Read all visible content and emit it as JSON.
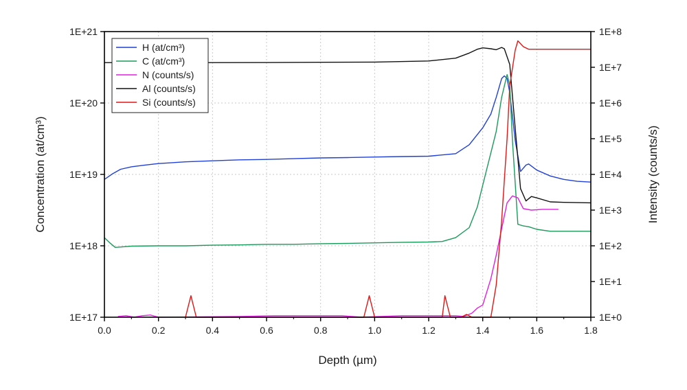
{
  "chart_data": {
    "type": "line",
    "xlabel": "Depth (µm)",
    "ylabel_left": "Concentration (at/cm³)",
    "ylabel_right": "Intensity (counts/s)",
    "xlim": [
      0,
      1.8
    ],
    "x_ticks": [
      0,
      0.2,
      0.4,
      0.6,
      0.8,
      1.0,
      1.2,
      1.4,
      1.6,
      1.8
    ],
    "x_tick_labels": [
      "0.0",
      "0.2",
      "0.4",
      "0.6",
      "0.8",
      "1.0",
      "1.2",
      "1.4",
      "1.6",
      "1.8"
    ],
    "y_left_scale": "log",
    "y_left_lim": [
      1e+17,
      1e+21
    ],
    "y_left_tick_labels": [
      "1E+17",
      "1E+18",
      "1E+19",
      "1E+20",
      "1E+21"
    ],
    "y_right_scale": "log",
    "y_right_lim": [
      1,
      100000000.0
    ],
    "y_right_tick_labels": [
      "1E+0",
      "1E+1",
      "1E+2",
      "1E+3",
      "1E+4",
      "1E+5",
      "1E+6",
      "1E+7",
      "1E+8"
    ],
    "grid": true,
    "legend_position": "top-left",
    "series": [
      {
        "name": "H (at/cm³)",
        "axis": "left",
        "color": "#1f3fd6",
        "x": [
          0.0,
          0.03,
          0.06,
          0.1,
          0.15,
          0.2,
          0.3,
          0.4,
          0.5,
          0.6,
          0.7,
          0.8,
          0.9,
          1.0,
          1.1,
          1.2,
          1.3,
          1.35,
          1.4,
          1.43,
          1.45,
          1.47,
          1.48,
          1.49,
          1.5,
          1.52,
          1.54,
          1.56,
          1.57,
          1.6,
          1.65,
          1.7,
          1.75,
          1.8
        ],
        "values": [
          8.5e+18,
          1.02e+19,
          1.18e+19,
          1.28e+19,
          1.35e+19,
          1.42e+19,
          1.5e+19,
          1.55e+19,
          1.6e+19,
          1.62e+19,
          1.66e+19,
          1.7e+19,
          1.72e+19,
          1.75e+19,
          1.78e+19,
          1.8e+19,
          1.95e+19,
          2.6e+19,
          4.5e+19,
          7e+19,
          1.2e+20,
          2.2e+20,
          2.4e+20,
          2.2e+20,
          1.4e+20,
          3e+19,
          1.1e+19,
          1.35e+19,
          1.4e+19,
          1.15e+19,
          9.5e+18,
          8.5e+18,
          8e+18,
          7.8e+18
        ]
      },
      {
        "name": "C (at/cm³)",
        "axis": "left",
        "color": "#1a9a5a",
        "x": [
          0.0,
          0.02,
          0.04,
          0.07,
          0.1,
          0.2,
          0.3,
          0.4,
          0.5,
          0.6,
          0.7,
          0.8,
          0.9,
          1.0,
          1.1,
          1.2,
          1.25,
          1.3,
          1.35,
          1.38,
          1.41,
          1.43,
          1.45,
          1.47,
          1.49,
          1.5,
          1.51,
          1.53,
          1.55,
          1.57,
          1.6,
          1.65,
          1.7,
          1.8
        ],
        "values": [
          1.3e+18,
          1.1e+18,
          9.5e+17,
          9.7e+17,
          9.9e+17,
          1e+18,
          1e+18,
          1.02e+18,
          1.03e+18,
          1.05e+18,
          1.05e+18,
          1.07e+18,
          1.08e+18,
          1.1e+18,
          1.12e+18,
          1.13e+18,
          1.15e+18,
          1.3e+18,
          1.8e+18,
          3.5e+18,
          1e+19,
          2e+19,
          4e+19,
          1.2e+20,
          2.5e+20,
          1.8e+20,
          3e+19,
          2e+18,
          1.9e+18,
          1.85e+18,
          1.7e+18,
          1.6e+18,
          1.6e+18,
          1.6e+18
        ]
      },
      {
        "name": "N (counts/s)",
        "axis": "right",
        "color": "#e21de2",
        "x": [
          0.05,
          0.08,
          0.11,
          0.14,
          0.17,
          0.2,
          0.5,
          0.63,
          0.88,
          0.95,
          1.1,
          1.3,
          1.33,
          1.36,
          1.38,
          1.4,
          1.43,
          1.45,
          1.47,
          1.49,
          1.51,
          1.53,
          1.55,
          1.58,
          1.62,
          1.68
        ],
        "values": [
          1.05,
          1.1,
          1.0,
          1.1,
          1.15,
          1.0,
          1.05,
          1.1,
          1.1,
          1.0,
          1.1,
          1.1,
          1.05,
          1.3,
          1.8,
          2.2,
          12,
          55,
          300,
          1600,
          2500,
          2200,
          1100,
          1000,
          1050,
          1050
        ]
      },
      {
        "name": "Al (counts/s)",
        "axis": "right",
        "color": "#111111",
        "x": [
          0.0,
          0.2,
          0.4,
          0.6,
          0.8,
          1.0,
          1.2,
          1.3,
          1.35,
          1.38,
          1.4,
          1.43,
          1.45,
          1.47,
          1.48,
          1.5,
          1.52,
          1.54,
          1.56,
          1.58,
          1.6,
          1.65,
          1.7,
          1.8
        ],
        "values": [
          13500000,
          13500000,
          13500000,
          13600000,
          13800000,
          14000000,
          15000000,
          18000000,
          25000000,
          32000000,
          35000000,
          33000000,
          31000000,
          36000000,
          33000000,
          12000000,
          200000,
          4000,
          1800,
          2400,
          2200,
          1700,
          1650,
          1600
        ]
      },
      {
        "name": "Si (counts/s)",
        "axis": "right",
        "color": "#e21515",
        "x": [
          0.3,
          0.32,
          0.34,
          0.96,
          0.98,
          1.0,
          1.25,
          1.26,
          1.28,
          1.32,
          1.34,
          1.36,
          1.43,
          1.45,
          1.47,
          1.49,
          1.5,
          1.52,
          1.53,
          1.55,
          1.57,
          1.6,
          1.7,
          1.8
        ],
        "values": [
          1.0,
          4.0,
          1.0,
          1.0,
          4.0,
          1.0,
          1.0,
          4.0,
          1.0,
          1.0,
          1.2,
          1.0,
          1.0,
          8.0,
          500,
          100000,
          3000000,
          30000000,
          55000000,
          38000000,
          32000000,
          32000000,
          32000000,
          32000000
        ]
      }
    ]
  }
}
